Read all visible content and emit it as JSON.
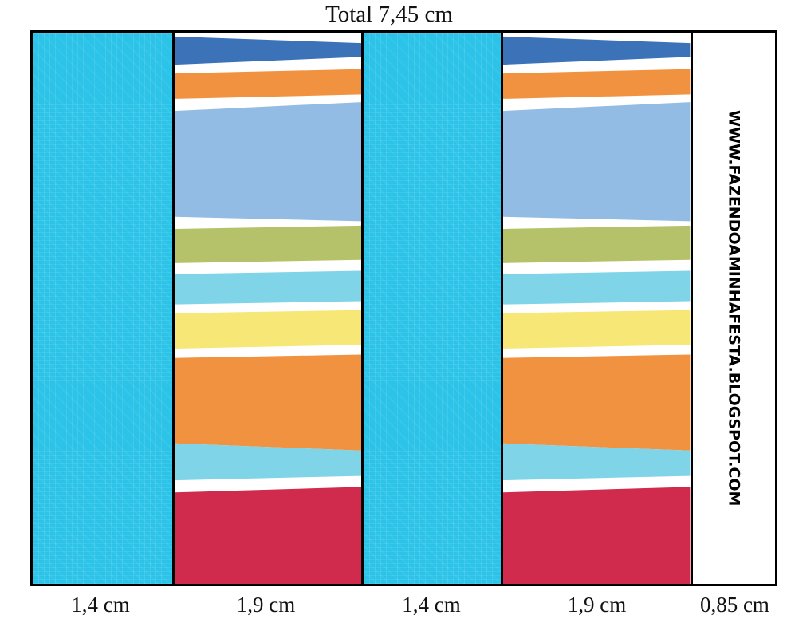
{
  "title": "Total 7,45 cm",
  "watermark": "WWW.FAZENDOAMINHAFESTA.BLOGSPOT.COM",
  "colors": {
    "solid_column": "#2cc3e8",
    "border": "#000000",
    "background": "#ffffff"
  },
  "columns": [
    {
      "label": "1,4 cm",
      "type": "solid",
      "width_cm": 1.4
    },
    {
      "label": "1,9 cm",
      "type": "striped",
      "width_cm": 1.9
    },
    {
      "label": "1,4 cm",
      "type": "solid",
      "width_cm": 1.4
    },
    {
      "label": "1,9 cm",
      "type": "striped",
      "width_cm": 1.9
    },
    {
      "label": "0,85 cm",
      "type": "watermark",
      "width_cm": 0.85
    }
  ],
  "stripes": [
    {
      "name": "dark-blue",
      "color": "#3b72b8",
      "tl": 0.7,
      "tr": 1.9,
      "bl": 5.8,
      "br": 4.4
    },
    {
      "name": "orange-top",
      "color": "#f19240",
      "tl": 7.4,
      "tr": 6.6,
      "bl": 12.0,
      "br": 11.2
    },
    {
      "name": "periwinkle",
      "color": "#92bce4",
      "tl": 14.2,
      "tr": 12.6,
      "bl": 33.4,
      "br": 34.2
    },
    {
      "name": "olive",
      "color": "#b6c26a",
      "tl": 35.6,
      "tr": 35.0,
      "bl": 41.8,
      "br": 41.2
    },
    {
      "name": "light-cyan",
      "color": "#7fd4e8",
      "tl": 43.8,
      "tr": 43.2,
      "bl": 49.3,
      "br": 48.7
    },
    {
      "name": "yellow",
      "color": "#f6e776",
      "tl": 50.9,
      "tr": 50.3,
      "bl": 57.3,
      "br": 56.6
    },
    {
      "name": "orange-big",
      "color": "#f19240",
      "tl": 59.0,
      "tr": 58.4,
      "bl": 74.5,
      "br": 75.8
    },
    {
      "name": "cyan-band",
      "color": "#7fd4e8",
      "tl": 74.5,
      "tr": 75.8,
      "bl": 81.2,
      "br": 80.4
    },
    {
      "name": "crimson",
      "color": "#d02a4d",
      "tl": 83.4,
      "tr": 82.4,
      "bl": 100.0,
      "br": 100.0
    }
  ]
}
